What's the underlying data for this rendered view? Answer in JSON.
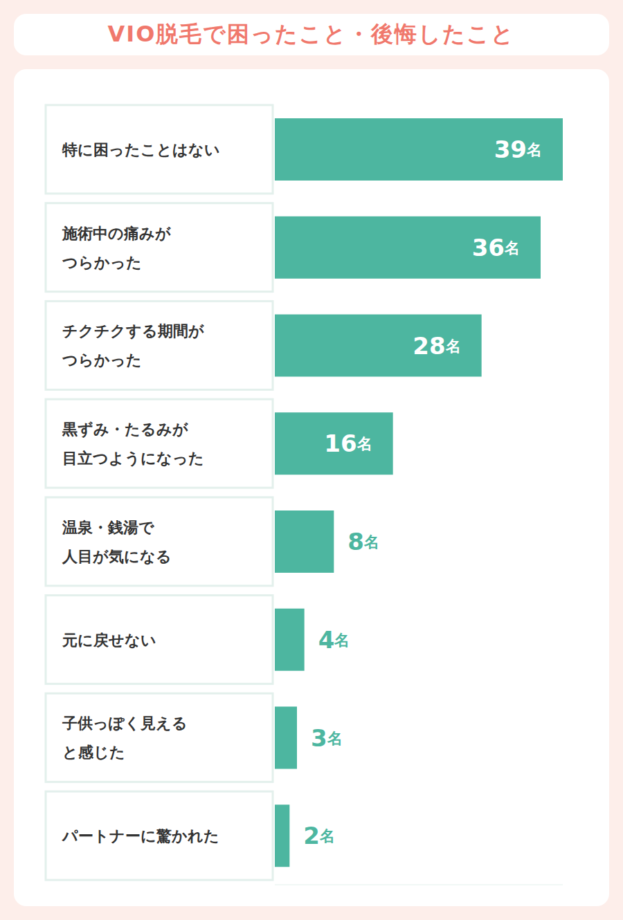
{
  "chart_data": {
    "type": "bar",
    "title": "VIO脱毛で困ったこと・後悔したこと",
    "orientation": "horizontal",
    "categories": [
      "特に困ったことはない",
      "施術中の痛みが\nつらかった",
      "チクチクする期間が\nつらかった",
      "黒ずみ・たるみが\n目立つようになった",
      "温泉・銭湯で\n人目が気になる",
      "元に戻せない",
      "子供っぽく見える\nと感じた",
      "パートナーに驚かれた"
    ],
    "values": [
      39,
      36,
      28,
      16,
      8,
      4,
      3,
      2
    ],
    "value_labels": [
      "39名",
      "36名",
      "28名",
      "16名",
      "8名",
      "4名",
      "3名",
      "2名"
    ],
    "data_labels": true,
    "color": "#4db6a0",
    "xlim": [
      0,
      39
    ],
    "xticks": [],
    "tick_labels": false,
    "grid": false
  }
}
